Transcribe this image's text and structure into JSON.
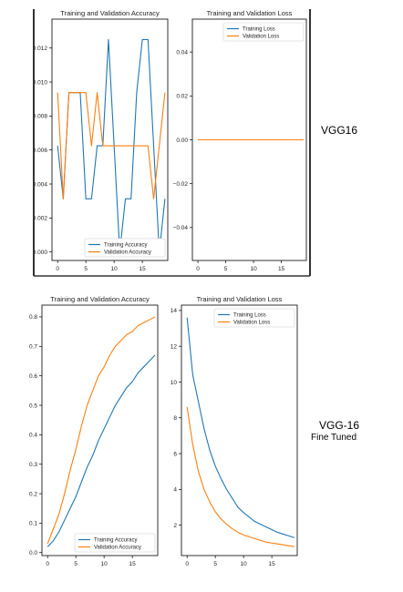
{
  "labels": {
    "top_model": "VGG16",
    "bottom_model_line1": "VGG-16",
    "bottom_model_line2": "Fine Tuned"
  },
  "colors": {
    "train": "#1f77b4",
    "val": "#ff7f0e",
    "frame": "#000000",
    "dark_border": "#333333"
  },
  "chart_data": [
    {
      "type": "line",
      "title": "Training and Validation Accuracy",
      "xlabel": "",
      "ylabel": "",
      "xlim": [
        -1,
        19.5
      ],
      "ylim": [
        -0.0005,
        0.0137
      ],
      "xticks": [
        0,
        5,
        10,
        15
      ],
      "yticks": [
        0.0,
        0.002,
        0.004,
        0.006,
        0.008,
        0.01,
        0.012
      ],
      "ytick_labels": [
        "0.000",
        "0.002",
        "0.004",
        "0.006",
        "0.008",
        "0.010",
        "0.012"
      ],
      "legend_position": "lower right",
      "x": [
        0,
        1,
        2,
        3,
        4,
        5,
        6,
        7,
        8,
        9,
        10,
        11,
        12,
        13,
        14,
        15,
        16,
        17,
        18,
        19
      ],
      "series": [
        {
          "name": "Training Accuracy",
          "color": "#1f77b4",
          "values": [
            0.00625,
            0.003125,
            0.009375,
            0.009375,
            0.009375,
            0.003125,
            0.003125,
            0.00625,
            0.00625,
            0.0125,
            0.00625,
            0.0,
            0.003125,
            0.003125,
            0.009375,
            0.0125,
            0.0125,
            0.00625,
            0.0,
            0.003125
          ]
        },
        {
          "name": "Validation Accuracy",
          "color": "#ff7f0e",
          "values": [
            0.009375,
            0.003125,
            0.009375,
            0.009375,
            0.009375,
            0.009375,
            0.00625,
            0.009375,
            0.00625,
            0.00625,
            0.00625,
            0.00625,
            0.00625,
            0.00625,
            0.00625,
            0.00625,
            0.00625,
            0.003125,
            0.00625,
            0.009375
          ]
        }
      ]
    },
    {
      "type": "line",
      "title": "Training and Validation Loss",
      "xlabel": "",
      "ylabel": "",
      "xlim": [
        -1,
        19.5
      ],
      "ylim": [
        -0.055,
        0.055
      ],
      "xticks": [
        0,
        5,
        10,
        15
      ],
      "yticks": [
        -0.04,
        -0.02,
        0.0,
        0.02,
        0.04
      ],
      "ytick_labels": [
        "−0.04",
        "−0.02",
        "0.00",
        "0.02",
        "0.04"
      ],
      "legend_position": "upper right",
      "x": [
        0,
        1,
        2,
        3,
        4,
        5,
        6,
        7,
        8,
        9,
        10,
        11,
        12,
        13,
        14,
        15,
        16,
        17,
        18,
        19
      ],
      "series": [
        {
          "name": "Training Loss",
          "color": "#1f77b4",
          "values": [
            0,
            0,
            0,
            0,
            0,
            0,
            0,
            0,
            0,
            0,
            0,
            0,
            0,
            0,
            0,
            0,
            0,
            0,
            0,
            0
          ]
        },
        {
          "name": "Validation Loss",
          "color": "#ff7f0e",
          "values": [
            0,
            0,
            0,
            0,
            0,
            0,
            0,
            0,
            0,
            0,
            0,
            0,
            0,
            0,
            0,
            0,
            0,
            0,
            0,
            0
          ]
        }
      ]
    },
    {
      "type": "line",
      "title": "Training and Validation Accuracy",
      "xlabel": "",
      "ylabel": "",
      "xlim": [
        -1,
        19.5
      ],
      "ylim": [
        -0.01,
        0.84
      ],
      "xticks": [
        0,
        5,
        10,
        15
      ],
      "yticks": [
        0.0,
        0.1,
        0.2,
        0.3,
        0.4,
        0.5,
        0.6,
        0.7,
        0.8
      ],
      "ytick_labels": [
        "0.0",
        "0.1",
        "0.2",
        "0.3",
        "0.4",
        "0.5",
        "0.6",
        "0.7",
        "0.8"
      ],
      "legend_position": "lower right",
      "x": [
        0,
        1,
        2,
        3,
        4,
        5,
        6,
        7,
        8,
        9,
        10,
        11,
        12,
        13,
        14,
        15,
        16,
        17,
        18,
        19
      ],
      "series": [
        {
          "name": "Training Accuracy",
          "color": "#1f77b4",
          "values": [
            0.02,
            0.04,
            0.07,
            0.11,
            0.15,
            0.19,
            0.24,
            0.29,
            0.33,
            0.38,
            0.42,
            0.46,
            0.5,
            0.53,
            0.56,
            0.58,
            0.61,
            0.63,
            0.65,
            0.67
          ]
        },
        {
          "name": "Validation Accuracy",
          "color": "#ff7f0e",
          "values": [
            0.03,
            0.08,
            0.13,
            0.2,
            0.28,
            0.35,
            0.43,
            0.5,
            0.55,
            0.6,
            0.63,
            0.67,
            0.7,
            0.72,
            0.74,
            0.75,
            0.77,
            0.78,
            0.79,
            0.8
          ]
        }
      ]
    },
    {
      "type": "line",
      "title": "Training and Validation Loss",
      "xlabel": "",
      "ylabel": "",
      "xlim": [
        -1,
        19.5
      ],
      "ylim": [
        0.3,
        14.3
      ],
      "xticks": [
        0,
        5,
        10,
        15
      ],
      "yticks": [
        2,
        4,
        6,
        8,
        10,
        12,
        14
      ],
      "ytick_labels": [
        "2",
        "4",
        "6",
        "8",
        "10",
        "12",
        "14"
      ],
      "legend_position": "upper right",
      "x": [
        0,
        1,
        2,
        3,
        4,
        5,
        6,
        7,
        8,
        9,
        10,
        11,
        12,
        13,
        14,
        15,
        16,
        17,
        18,
        19
      ],
      "series": [
        {
          "name": "Training Loss",
          "color": "#1f77b4",
          "values": [
            13.6,
            10.4,
            8.9,
            7.4,
            6.2,
            5.3,
            4.6,
            4.0,
            3.5,
            3.0,
            2.7,
            2.45,
            2.2,
            2.05,
            1.9,
            1.75,
            1.6,
            1.5,
            1.4,
            1.3
          ]
        },
        {
          "name": "Validation Loss",
          "color": "#ff7f0e",
          "values": [
            8.6,
            6.5,
            5.0,
            4.0,
            3.3,
            2.75,
            2.35,
            2.05,
            1.8,
            1.6,
            1.45,
            1.35,
            1.25,
            1.15,
            1.05,
            1.0,
            0.95,
            0.9,
            0.85,
            0.8
          ]
        }
      ]
    }
  ]
}
